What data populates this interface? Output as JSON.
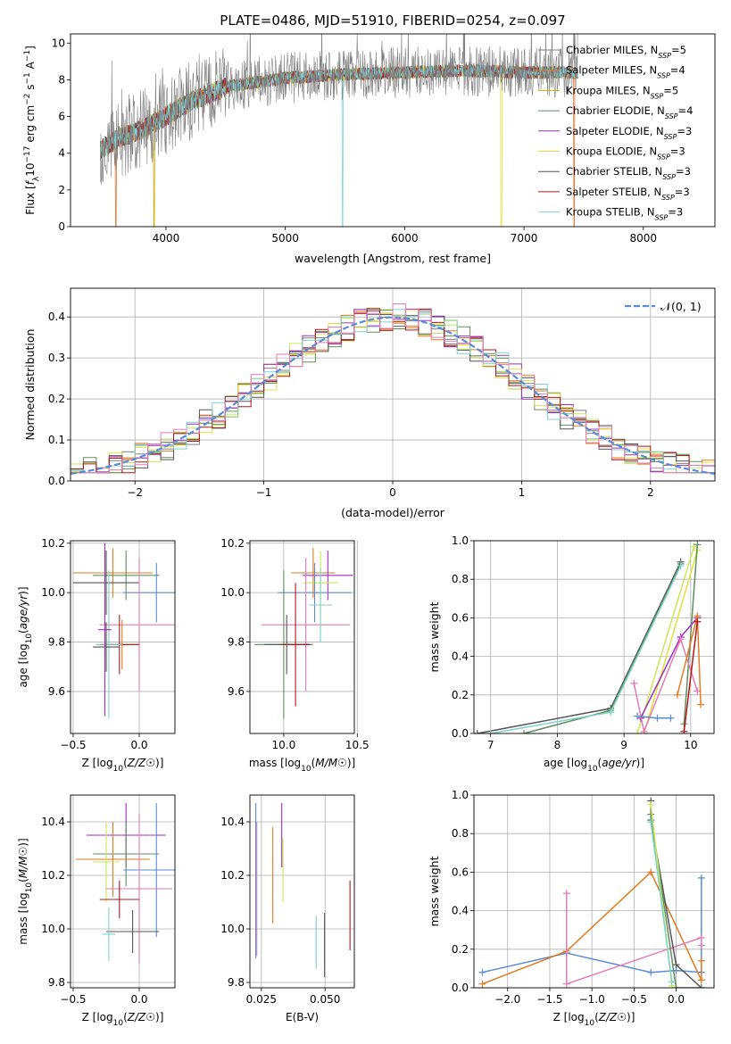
{
  "figure": {
    "title": "PLATE=0486, MJD=51910, FIBERID=0254, z=0.097"
  },
  "colors": {
    "Chabrier MILES": "#7f7f7f",
    "Salpeter MILES": "#e07b39",
    "Kroupa MILES": "#c9b100",
    "Chabrier ELODIE": "#5c8a5c",
    "Salpeter ELODIE": "#9a2fb5",
    "Kroupa ELODIE": "#e6e03a",
    "Chabrier STELIB": "#555555",
    "Salpeter STELIB": "#b01818",
    "Kroupa STELIB": "#7fd9d9",
    "blue": "#5b8bd6",
    "orange": "#e07b22",
    "pink": "#e37bb5",
    "green": "#5f8f5f",
    "lime": "#c8e85a",
    "purple": "#a02cc0",
    "red": "#b01818",
    "teal": "#7fd0c8"
  },
  "chart_data": [
    {
      "id": "spectrum",
      "type": "line",
      "title": "PLATE=0486, MJD=51910, FIBERID=0254, z=0.097",
      "xlabel": "wavelength [Angstrom, rest frame]",
      "ylabel_parts": [
        "Flux [",
        "f",
        "λ",
        "10",
        "−17",
        " erg cm",
        "−2",
        " s",
        "−1",
        " A",
        "−1",
        "]"
      ],
      "xlim": [
        3200,
        8600
      ],
      "ylim": [
        0,
        10.5
      ],
      "xticks": [
        4000,
        5000,
        6000,
        7000,
        8000
      ],
      "yticks": [
        0,
        2,
        4,
        6,
        8,
        10
      ],
      "grid": false,
      "legend_position": "right",
      "data_x_range": [
        3450,
        7450
      ],
      "data_continuum_anchors": {
        "x": [
          3450,
          3600,
          3800,
          4000,
          4200,
          4500,
          5000,
          5500,
          6000,
          6500,
          7000,
          7400
        ],
        "y": [
          4.2,
          4.8,
          5.3,
          6.0,
          6.8,
          7.6,
          8.1,
          8.3,
          8.4,
          8.5,
          8.4,
          8.4
        ]
      },
      "legend": [
        {
          "label": "Chabrier MILES, N",
          "sub": "SSP",
          "tail": "=5",
          "color": "#7f7f7f"
        },
        {
          "label": "Salpeter MILES, N",
          "sub": "SSP",
          "tail": "=4",
          "color": "#e07b39"
        },
        {
          "label": "Kroupa MILES, N",
          "sub": "SSP",
          "tail": "=5",
          "color": "#c9b100"
        },
        {
          "label": "Chabrier ELODIE, N",
          "sub": "SSP",
          "tail": "=4",
          "color": "#5c8a5c"
        },
        {
          "label": "Salpeter ELODIE, N",
          "sub": "SSP",
          "tail": "=3",
          "color": "#9a2fb5"
        },
        {
          "label": "Kroupa ELODIE, N",
          "sub": "SSP",
          "tail": "=3",
          "color": "#e6e03a"
        },
        {
          "label": "Chabrier STELIB, N",
          "sub": "SSP",
          "tail": "=3",
          "color": "#555555"
        },
        {
          "label": "Salpeter STELIB, N",
          "sub": "SSP",
          "tail": "=3",
          "color": "#b01818"
        },
        {
          "label": "Kroupa STELIB, N",
          "sub": "SSP",
          "tail": "=3",
          "color": "#7fd9d9"
        }
      ]
    },
    {
      "id": "residuals",
      "type": "histogram",
      "xlabel": "(data-model)/error",
      "ylabel": "Normed distribution",
      "xlim": [
        -2.5,
        2.5
      ],
      "ylim": [
        0,
        0.47
      ],
      "xticks": [
        -2,
        -1,
        0,
        1,
        2
      ],
      "yticks": [
        0.0,
        0.1,
        0.2,
        0.3,
        0.4
      ],
      "grid": true,
      "legend_position": "top-right",
      "legend": [
        {
          "label": "𝒩(0, 1)",
          "color": "#5b8bd6",
          "dashed": true
        }
      ],
      "bin_range": [
        -2.5,
        2.5
      ],
      "nbins": 50,
      "series_colors": [
        "#7f7f7f",
        "#e07b22",
        "#c8e85a",
        "#5f8f5f",
        "#a02cc0",
        "#e6e03a",
        "#555555",
        "#b01818",
        "#7fd0c8",
        "#e37bb5"
      ]
    },
    {
      "id": "Z-age",
      "type": "errorbar",
      "xlabel": "Z [log10(Z/Z☉)]",
      "ylabel": "age [log10(age/yr)]",
      "xlim": [
        -0.52,
        0.27
      ],
      "ylim": [
        9.43,
        10.21
      ],
      "xticks": [
        -0.5,
        0.0
      ],
      "yticks": [
        9.6,
        9.8,
        10.0,
        10.2
      ],
      "grid": true,
      "points": [
        {
          "x": -0.2,
          "xerr": 0.3,
          "y": 10.08,
          "yerr": 0.1,
          "color": "#e07b22"
        },
        {
          "x": -0.1,
          "xerr": 0.25,
          "y": 10.07,
          "yerr": 0.1,
          "color": "#5f8f5f"
        },
        {
          "x": -0.25,
          "xerr": 0.25,
          "y": 10.04,
          "yerr": 0.13,
          "color": "#555555"
        },
        {
          "x": 0.13,
          "xerr": 0.25,
          "y": 10.0,
          "yerr": 0.12,
          "color": "#5b8bd6"
        },
        {
          "x": 0.0,
          "xerr": 0.3,
          "y": 9.87,
          "yerr": 0.27,
          "color": "#e37bb5"
        },
        {
          "x": -0.13,
          "xerr": 0.13,
          "y": 9.79,
          "yerr": 0.1,
          "color": "#e07b22"
        },
        {
          "x": -0.15,
          "xerr": 0.15,
          "y": 9.79,
          "yerr": 0.12,
          "color": "#b01818"
        },
        {
          "x": -0.23,
          "xerr": 0.1,
          "y": 9.79,
          "yerr": 0.3,
          "color": "#7fd0c8"
        },
        {
          "x": -0.25,
          "xerr": 0.1,
          "y": 9.78,
          "yerr": 0.1,
          "color": "#555555"
        },
        {
          "x": -0.26,
          "xerr": 0.05,
          "y": 9.85,
          "yerr": 0.35,
          "color": "#a02cc0"
        }
      ]
    },
    {
      "id": "mass-age",
      "type": "errorbar",
      "xlabel": "mass [log10(M/M☉)]",
      "ylabel": "",
      "xlim": [
        9.77,
        10.48
      ],
      "ylim": [
        9.43,
        10.21
      ],
      "xticks": [
        10.0,
        10.5
      ],
      "yticks": [
        9.6,
        9.8,
        10.0,
        10.2
      ],
      "grid": true,
      "points": [
        {
          "x": 10.2,
          "xerr": 0.15,
          "y": 10.08,
          "yerr": 0.1,
          "color": "#e07b22"
        },
        {
          "x": 10.3,
          "xerr": 0.17,
          "y": 10.07,
          "yerr": 0.1,
          "color": "#a02cc0"
        },
        {
          "x": 10.25,
          "xerr": 0.12,
          "y": 10.04,
          "yerr": 0.13,
          "color": "#c8e85a"
        },
        {
          "x": 10.21,
          "xerr": 0.25,
          "y": 10.0,
          "yerr": 0.12,
          "color": "#5b8bd6"
        },
        {
          "x": 10.15,
          "xerr": 0.3,
          "y": 9.87,
          "yerr": 0.27,
          "color": "#e37bb5"
        },
        {
          "x": 10.0,
          "xerr": 0.2,
          "y": 9.79,
          "yerr": 0.3,
          "color": "#5f8f5f"
        },
        {
          "x": 10.02,
          "xerr": 0.15,
          "y": 9.79,
          "yerr": 0.12,
          "color": "#555555"
        },
        {
          "x": 10.08,
          "xerr": 0.1,
          "y": 9.79,
          "yerr": 0.25,
          "color": "#b01818"
        },
        {
          "x": 10.25,
          "xerr": 0.08,
          "y": 9.95,
          "yerr": 0.15,
          "color": "#7fd0c8"
        }
      ]
    },
    {
      "id": "age-weight",
      "type": "line",
      "xlabel": "age [log10(age/yr)]",
      "ylabel": "mass weight",
      "xlim": [
        6.75,
        10.35
      ],
      "ylim": [
        0,
        1.0
      ],
      "xticks": [
        7,
        8,
        9,
        10
      ],
      "yticks": [
        0.0,
        0.2,
        0.4,
        0.6,
        0.8,
        1.0
      ],
      "grid": true,
      "series": [
        {
          "color": "#555555",
          "x": [
            6.8,
            8.8,
            9.85
          ],
          "y": [
            0.0,
            0.13,
            0.89
          ]
        },
        {
          "color": "#5f8f5f",
          "x": [
            7.5,
            8.8,
            9.85
          ],
          "y": [
            0.0,
            0.12,
            0.88
          ]
        },
        {
          "color": "#7fd0c8",
          "x": [
            7.0,
            8.8,
            9.85
          ],
          "y": [
            0.0,
            0.11,
            0.87
          ]
        },
        {
          "color": "#c8e85a",
          "x": [
            9.2,
            10.05
          ],
          "y": [
            0.0,
            0.97
          ]
        },
        {
          "color": "#e6e03a",
          "x": [
            9.3,
            10.1
          ],
          "y": [
            0.0,
            0.95
          ]
        },
        {
          "color": "#5f8f5f",
          "x": [
            9.9,
            10.1
          ],
          "y": [
            0.05,
            0.98
          ]
        },
        {
          "color": "#a02cc0",
          "x": [
            9.25,
            9.85,
            10.1
          ],
          "y": [
            0.08,
            0.5,
            0.6
          ]
        },
        {
          "color": "#e37bb5",
          "x": [
            9.15,
            9.3,
            9.85,
            10.1
          ],
          "y": [
            0.26,
            0.01,
            0.49,
            0.22
          ]
        },
        {
          "color": "#5b8bd6",
          "x": [
            9.2,
            9.5,
            9.7
          ],
          "y": [
            0.09,
            0.08,
            0.08
          ]
        },
        {
          "color": "#e07b22",
          "x": [
            9.8,
            10.1,
            10.15
          ],
          "y": [
            0.2,
            0.61,
            0.15
          ]
        },
        {
          "color": "#b01818",
          "x": [
            9.9,
            10.1
          ],
          "y": [
            0.01,
            0.58
          ]
        }
      ]
    },
    {
      "id": "Z-mass",
      "type": "errorbar",
      "xlabel": "Z [log10(Z/Z☉)]",
      "ylabel": "mass [log10(M/M☉)]",
      "xlim": [
        -0.52,
        0.27
      ],
      "ylim": [
        9.78,
        10.5
      ],
      "xticks": [
        -0.5,
        0.0
      ],
      "yticks": [
        9.8,
        10.0,
        10.2,
        10.4
      ],
      "grid": true,
      "points": [
        {
          "x": -0.1,
          "xerr": 0.3,
          "y": 10.35,
          "yerr": 0.12,
          "color": "#a02cc0"
        },
        {
          "x": -0.1,
          "xerr": 0.25,
          "y": 10.28,
          "yerr": 0.12,
          "color": "#5f8f5f"
        },
        {
          "x": -0.2,
          "xerr": 0.28,
          "y": 10.26,
          "yerr": 0.14,
          "color": "#e07b22"
        },
        {
          "x": -0.25,
          "xerr": 0.1,
          "y": 10.25,
          "yerr": 0.15,
          "color": "#c8e85a"
        },
        {
          "x": 0.13,
          "xerr": 0.25,
          "y": 10.22,
          "yerr": 0.25,
          "color": "#5b8bd6"
        },
        {
          "x": 0.0,
          "xerr": 0.25,
          "y": 10.15,
          "yerr": 0.28,
          "color": "#e37bb5"
        },
        {
          "x": -0.15,
          "xerr": 0.15,
          "y": 10.11,
          "yerr": 0.07,
          "color": "#b01818"
        },
        {
          "x": -0.05,
          "xerr": 0.2,
          "y": 9.99,
          "yerr": 0.08,
          "color": "#555555"
        },
        {
          "x": -0.23,
          "xerr": 0.05,
          "y": 9.98,
          "yerr": 0.1,
          "color": "#7fd0c8"
        }
      ]
    },
    {
      "id": "ebv-mass",
      "type": "errorbar",
      "xlabel": "E(B-V)",
      "ylabel": "",
      "xlim": [
        0.0205,
        0.0615
      ],
      "ylim": [
        9.78,
        10.5
      ],
      "xticks": [
        0.025,
        0.05
      ],
      "yticks": [
        9.8,
        10.0,
        10.2,
        10.4
      ],
      "grid": true,
      "points": [
        {
          "x": 0.0228,
          "xerr": 0.0,
          "y": 10.18,
          "yerr": 0.29,
          "color": "#5b8bd6"
        },
        {
          "x": 0.0232,
          "xerr": 0.0,
          "y": 10.15,
          "yerr": 0.25,
          "color": "#e37bb5"
        },
        {
          "x": 0.0295,
          "xerr": 0.0,
          "y": 10.2,
          "yerr": 0.18,
          "color": "#e07b22"
        },
        {
          "x": 0.033,
          "xerr": 0.0,
          "y": 10.35,
          "yerr": 0.12,
          "color": "#a02cc0"
        },
        {
          "x": 0.0335,
          "xerr": 0.0,
          "y": 10.22,
          "yerr": 0.12,
          "color": "#c8e85a"
        },
        {
          "x": 0.0465,
          "xerr": 0.0,
          "y": 9.95,
          "yerr": 0.1,
          "color": "#7fd0c8"
        },
        {
          "x": 0.0498,
          "xerr": 0.0,
          "y": 9.94,
          "yerr": 0.12,
          "color": "#555555"
        },
        {
          "x": 0.0598,
          "xerr": 0.0,
          "y": 10.05,
          "yerr": 0.13,
          "color": "#b01818"
        }
      ]
    },
    {
      "id": "Z-weight",
      "type": "line",
      "xlabel": "Z [log10(Z/Z☉)]",
      "ylabel": "mass weight",
      "xlim": [
        -2.4,
        0.45
      ],
      "ylim": [
        0,
        1.0
      ],
      "xticks": [
        -2.0,
        -1.5,
        -1.0,
        -0.5,
        0.0
      ],
      "yticks": [
        0.0,
        0.2,
        0.4,
        0.6,
        0.8,
        1.0
      ],
      "grid": true,
      "series": [
        {
          "color": "#5b8bd6",
          "x": [
            -2.3,
            -1.3,
            -0.3,
            0.0,
            0.3,
            0.3
          ],
          "y": [
            0.08,
            0.18,
            0.08,
            0.09,
            0.08,
            0.57
          ]
        },
        {
          "color": "#e07b22",
          "x": [
            -2.3,
            -1.3,
            -0.3,
            0.3
          ],
          "y": [
            0.02,
            0.19,
            0.6,
            0.04
          ]
        },
        {
          "color": "#e37bb5",
          "x": [
            -1.3,
            -1.3,
            0.3,
            0.3
          ],
          "y": [
            0.49,
            0.02,
            0.26,
            0.22
          ]
        },
        {
          "color": "#555555",
          "x": [
            -0.3,
            -0.3,
            0.0,
            0.3
          ],
          "y": [
            0.97,
            0.87,
            0.12,
            0.0
          ]
        },
        {
          "color": "#5f8f5f",
          "x": [
            -0.3,
            0.0,
            0.3
          ],
          "y": [
            0.9,
            0.0,
            0.0
          ]
        },
        {
          "color": "#c8e85a",
          "x": [
            -0.3,
            -0.05
          ],
          "y": [
            0.95,
            0.01
          ]
        },
        {
          "color": "#7fd0c8",
          "x": [
            -0.3,
            -0.05
          ],
          "y": [
            0.86,
            0.03
          ]
        },
        {
          "color": "#e07b22",
          "x": [
            0.3,
            0.3
          ],
          "y": [
            0.14,
            0.04
          ]
        }
      ]
    }
  ]
}
